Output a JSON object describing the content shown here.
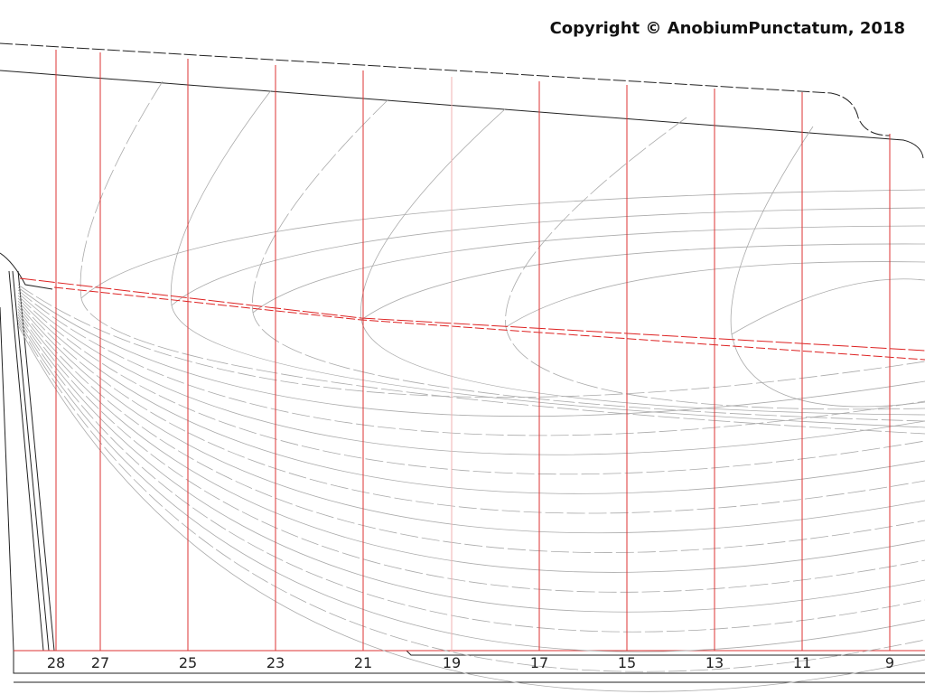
{
  "copyright": "Copyright © AnobiumPunctatum, 2018",
  "stations": [
    "28",
    "27",
    "25",
    "23",
    "21",
    "19",
    "17",
    "15",
    "13",
    "11",
    "9"
  ]
}
